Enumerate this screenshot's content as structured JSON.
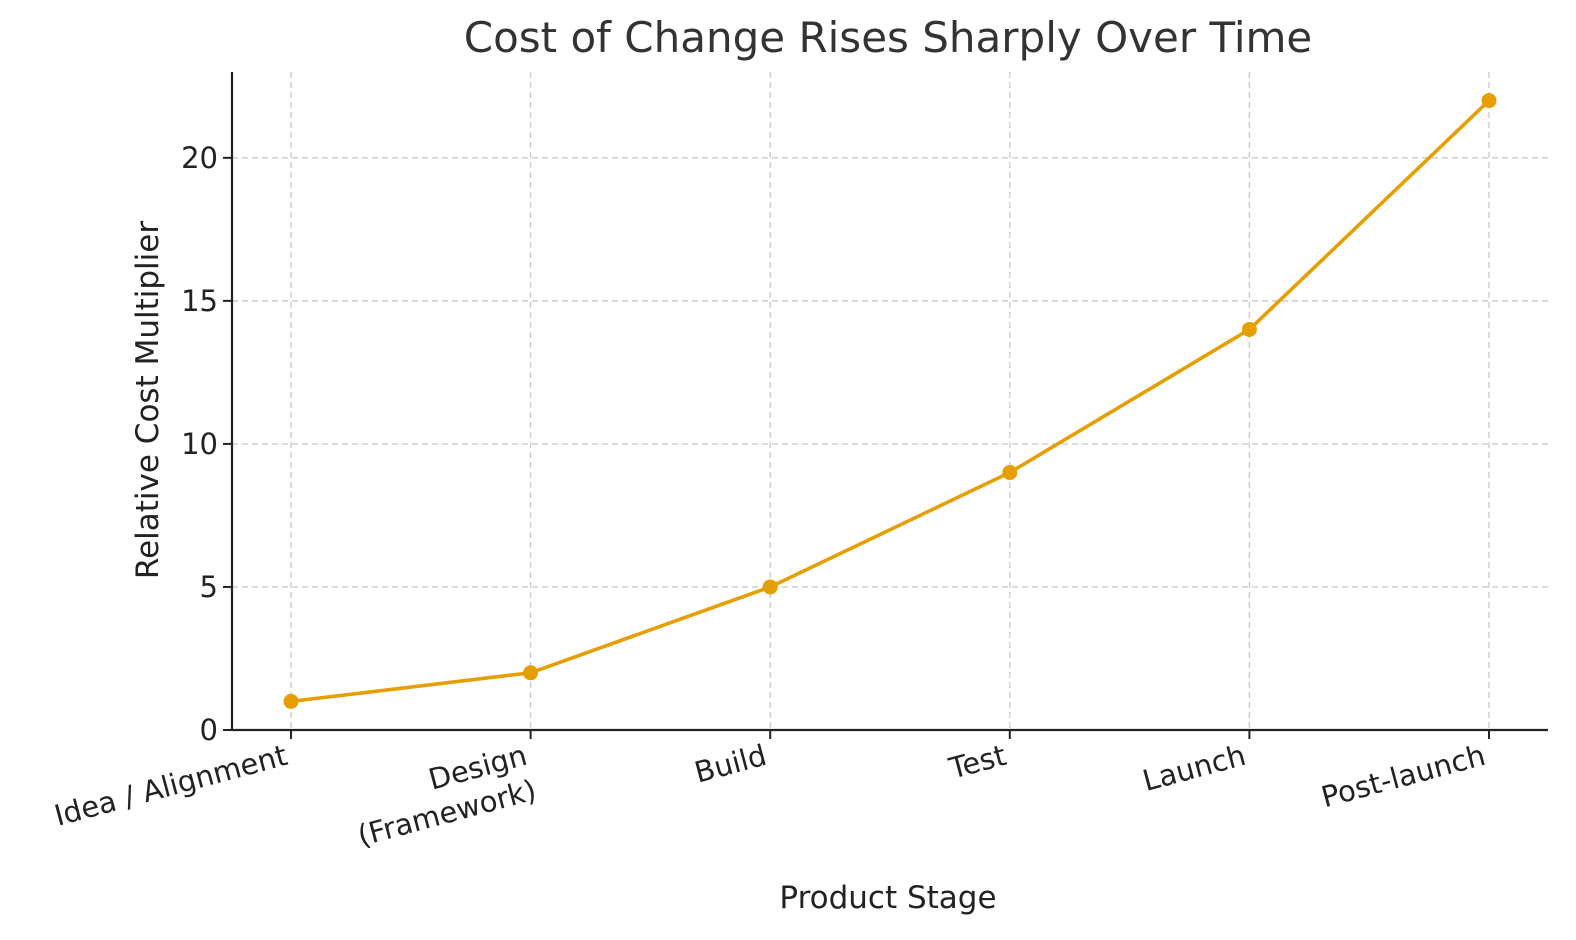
{
  "chart_data": {
    "type": "line",
    "title": "Cost of Change Rises Sharply Over Time",
    "xlabel": "Product Stage",
    "ylabel": "Relative Cost Multiplier",
    "categories": [
      [
        "Idea / Alignment"
      ],
      [
        "Design",
        "(Framework)"
      ],
      [
        "Build"
      ],
      [
        "Test"
      ],
      [
        "Launch"
      ],
      [
        "Post-launch"
      ]
    ],
    "series": [
      {
        "values": [
          1,
          2,
          5,
          9,
          14,
          22
        ],
        "color": "#e69f00"
      }
    ],
    "ylim": [
      0,
      23
    ],
    "yticks": [
      0,
      5,
      10,
      15,
      20
    ],
    "grid": true,
    "xtick_rotation_deg": -15,
    "colors": {
      "line": "#e69f00",
      "grid": "#cccccc",
      "axis": "#222222",
      "title": "#333333"
    }
  }
}
